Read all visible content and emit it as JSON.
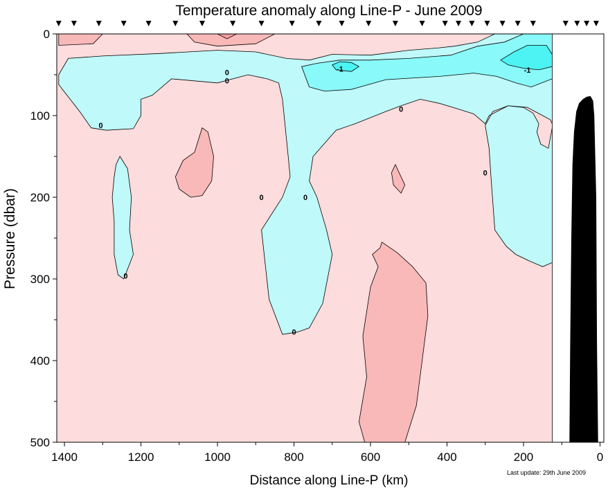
{
  "chart_data": {
    "type": "heatmap",
    "title": "Temperature anomaly along Line-P - June 2009",
    "xlabel": "Distance along Line-P (km)",
    "ylabel": "Pressure (dbar)",
    "footnote": "Last update: 29th June 2009",
    "xlim": [
      1420,
      -10
    ],
    "ylim": [
      500,
      0
    ],
    "x_ticks": [
      1400,
      1200,
      1000,
      800,
      600,
      400,
      200,
      0
    ],
    "y_ticks": [
      0,
      100,
      200,
      300,
      400,
      500
    ],
    "stations_km": [
      1415,
      1375,
      1310,
      1245,
      1180,
      1110,
      1040,
      960,
      885,
      805,
      735,
      675,
      605,
      535,
      465,
      405,
      370,
      335,
      295,
      255,
      215,
      175,
      90,
      60,
      35,
      10
    ],
    "colors": {
      "warm_light": "#fcdcdc",
      "warm_mid": "#f9b9b9",
      "warm_strong": "#f59c9c",
      "cool_light": "#bff9f9",
      "cool_mid": "#89f9f9",
      "cool_strong": "#4df3f3",
      "nodata": "#ffffff",
      "bathymetry": "#000000"
    },
    "regions": [
      {
        "class": "warm",
        "level": "mid",
        "points": [
          [
            1415,
            0
          ],
          [
            1300,
            0
          ],
          [
            1325,
            12
          ],
          [
            1415,
            14
          ]
        ]
      },
      {
        "class": "warm",
        "level": "mid",
        "points": [
          [
            1080,
            0
          ],
          [
            850,
            0
          ],
          [
            900,
            12
          ],
          [
            1000,
            15
          ],
          [
            1060,
            10
          ]
        ]
      },
      {
        "class": "warm",
        "level": "strong",
        "points": [
          [
            1000,
            0
          ],
          [
            950,
            0
          ],
          [
            975,
            6
          ]
        ]
      },
      {
        "class": "cool",
        "level": "light",
        "points": [
          [
            1415,
            50
          ],
          [
            1390,
            30
          ],
          [
            1300,
            27
          ],
          [
            1150,
            24
          ],
          [
            1000,
            20
          ],
          [
            900,
            22
          ],
          [
            820,
            30
          ],
          [
            760,
            32
          ],
          [
            700,
            25
          ],
          [
            600,
            26
          ],
          [
            500,
            20
          ],
          [
            420,
            17
          ],
          [
            380,
            15
          ],
          [
            320,
            10
          ],
          [
            275,
            0
          ],
          [
            125,
            0
          ],
          [
            125,
            115
          ],
          [
            135,
            140
          ],
          [
            155,
            135
          ],
          [
            165,
            120
          ],
          [
            160,
            110
          ],
          [
            175,
            97
          ],
          [
            200,
            90
          ],
          [
            240,
            88
          ],
          [
            280,
            95
          ],
          [
            300,
            112
          ],
          [
            290,
            140
          ],
          [
            285,
            175
          ],
          [
            275,
            240
          ],
          [
            245,
            260
          ],
          [
            220,
            270
          ],
          [
            185,
            278
          ],
          [
            150,
            285
          ],
          [
            125,
            280
          ],
          [
            125,
            110
          ],
          [
            130,
            105
          ],
          [
            170,
            95
          ],
          [
            190,
            90
          ],
          [
            240,
            88
          ],
          [
            290,
            100
          ],
          [
            300,
            110
          ],
          [
            330,
            98
          ],
          [
            370,
            92
          ],
          [
            420,
            85
          ],
          [
            470,
            80
          ],
          [
            520,
            88
          ],
          [
            560,
            95
          ],
          [
            640,
            110
          ],
          [
            690,
            118
          ],
          [
            750,
            150
          ],
          [
            760,
            180
          ],
          [
            740,
            200
          ],
          [
            715,
            240
          ],
          [
            700,
            270
          ],
          [
            725,
            330
          ],
          [
            760,
            360
          ],
          [
            790,
            365
          ],
          [
            830,
            368
          ],
          [
            865,
            325
          ],
          [
            885,
            240
          ],
          [
            830,
            200
          ],
          [
            810,
            175
          ],
          [
            815,
            150
          ],
          [
            830,
            80
          ],
          [
            840,
            60
          ],
          [
            870,
            55
          ],
          [
            920,
            50
          ],
          [
            1000,
            60
          ],
          [
            1120,
            55
          ],
          [
            1170,
            75
          ],
          [
            1200,
            80
          ],
          [
            1200,
            100
          ],
          [
            1220,
            116
          ],
          [
            1290,
            118
          ],
          [
            1330,
            115
          ],
          [
            1360,
            95
          ],
          [
            1385,
            80
          ],
          [
            1415,
            62
          ]
        ]
      },
      {
        "class": "cool",
        "level": "light",
        "points": [
          [
            1265,
            160
          ],
          [
            1255,
            150
          ],
          [
            1235,
            165
          ],
          [
            1225,
            200
          ],
          [
            1230,
            240
          ],
          [
            1220,
            270
          ],
          [
            1245,
            300
          ],
          [
            1260,
            295
          ],
          [
            1270,
            270
          ],
          [
            1270,
            230
          ],
          [
            1275,
            200
          ],
          [
            1270,
            175
          ]
        ]
      },
      {
        "class": "cool",
        "level": "mid",
        "points": [
          [
            1415,
            26
          ],
          [
            1415,
            26
          ]
        ]
      },
      {
        "class": "cool",
        "level": "mid",
        "points": [
          [
            780,
            40
          ],
          [
            760,
            65
          ],
          [
            720,
            70
          ],
          [
            650,
            68
          ],
          [
            560,
            56
          ],
          [
            420,
            52
          ],
          [
            330,
            48
          ],
          [
            270,
            52
          ],
          [
            220,
            60
          ],
          [
            180,
            65
          ],
          [
            125,
            55
          ],
          [
            125,
            0
          ],
          [
            200,
            0
          ],
          [
            250,
            10
          ],
          [
            320,
            15
          ],
          [
            390,
            26
          ],
          [
            500,
            30
          ],
          [
            600,
            32
          ],
          [
            680,
            32
          ],
          [
            740,
            36
          ]
        ]
      },
      {
        "class": "cool",
        "level": "strong",
        "points": [
          [
            700,
            38
          ],
          [
            680,
            34
          ],
          [
            650,
            35
          ],
          [
            630,
            40
          ],
          [
            650,
            46
          ],
          [
            690,
            44
          ]
        ]
      },
      {
        "class": "cool",
        "level": "strong",
        "points": [
          [
            260,
            32
          ],
          [
            225,
            22
          ],
          [
            190,
            14
          ],
          [
            140,
            14
          ],
          [
            125,
            25
          ],
          [
            125,
            40
          ],
          [
            160,
            44
          ],
          [
            200,
            42
          ],
          [
            240,
            38
          ]
        ]
      },
      {
        "class": "warm",
        "level": "mid",
        "points": [
          [
            1060,
            145
          ],
          [
            1090,
            155
          ],
          [
            1110,
            175
          ],
          [
            1100,
            190
          ],
          [
            1070,
            200
          ],
          [
            1040,
            198
          ],
          [
            1015,
            180
          ],
          [
            1010,
            150
          ],
          [
            1025,
            120
          ],
          [
            1040,
            115
          ]
        ]
      },
      {
        "class": "warm",
        "level": "mid",
        "points": [
          [
            570,
            255
          ],
          [
            530,
            268
          ],
          [
            490,
            285
          ],
          [
            455,
            305
          ],
          [
            450,
            345
          ],
          [
            465,
            400
          ],
          [
            480,
            455
          ],
          [
            510,
            500
          ],
          [
            615,
            500
          ],
          [
            630,
            475
          ],
          [
            610,
            420
          ],
          [
            620,
            370
          ],
          [
            600,
            310
          ],
          [
            580,
            285
          ],
          [
            595,
            270
          ],
          [
            575,
            262
          ]
        ]
      },
      {
        "class": "warm",
        "level": "mid",
        "points": [
          [
            535,
            160
          ],
          [
            525,
            170
          ],
          [
            510,
            185
          ],
          [
            520,
            195
          ],
          [
            540,
            185
          ],
          [
            545,
            170
          ]
        ]
      }
    ],
    "contour_labels": [
      {
        "x": 975,
        "y": 47,
        "text": "0"
      },
      {
        "x": 975,
        "y": 57,
        "text": "0"
      },
      {
        "x": 1305,
        "y": 112,
        "text": "0"
      },
      {
        "x": 885,
        "y": 200,
        "text": "0"
      },
      {
        "x": 770,
        "y": 200,
        "text": "0"
      },
      {
        "x": 520,
        "y": 92,
        "text": "0"
      },
      {
        "x": 300,
        "y": 170,
        "text": "0"
      },
      {
        "x": 1240,
        "y": 296,
        "text": "0"
      },
      {
        "x": 800,
        "y": 365,
        "text": "0"
      },
      {
        "x": 680,
        "y": 43,
        "text": "-1"
      },
      {
        "x": 190,
        "y": 44,
        "text": "-1"
      }
    ],
    "nodata_region": {
      "x_from": 125,
      "x_to": -10
    },
    "bathymetry": [
      [
        80,
        500
      ],
      [
        78,
        380
      ],
      [
        75,
        250
      ],
      [
        72,
        160
      ],
      [
        68,
        120
      ],
      [
        62,
        95
      ],
      [
        55,
        85
      ],
      [
        45,
        80
      ],
      [
        35,
        77
      ],
      [
        25,
        76
      ],
      [
        18,
        82
      ],
      [
        15,
        100
      ],
      [
        10,
        200
      ],
      [
        8,
        380
      ],
      [
        5,
        500
      ]
    ]
  }
}
